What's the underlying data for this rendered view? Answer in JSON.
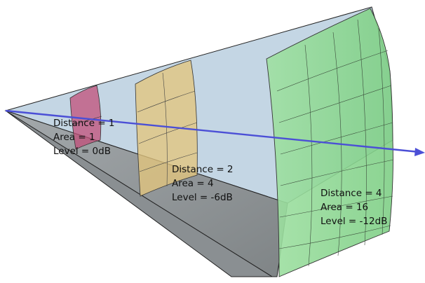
{
  "labels": [
    {
      "distance": "Distance = 1",
      "area": "Area = 1",
      "level": "Level = 0dB"
    },
    {
      "distance": "Distance = 2",
      "area": "Area = 4",
      "level": "Level = -6dB"
    },
    {
      "distance": "Distance = 4",
      "area": "Area = 16",
      "level": "Level = -12dB"
    }
  ],
  "colors": {
    "cone_top": "#c4d6e4",
    "cone_side": "#8e9396",
    "wedge_outline": "#1a1a1a",
    "surface_1": "#c24f7a",
    "surface_2": "#e3c57d",
    "surface_3": "#8fd992",
    "axis_line": "#4b4fd6"
  }
}
